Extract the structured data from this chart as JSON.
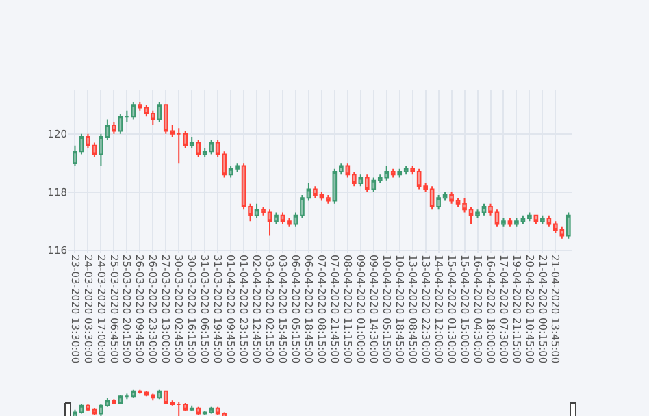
{
  "chart_data": {
    "type": "candlestick",
    "categories": [
      "23-03-2020 13:30:00",
      null,
      "24-03-2020 03:30:00",
      null,
      "24-03-2020 17:00:00",
      null,
      "25-03-2020 06:45:00",
      null,
      "25-03-2020 20:15:00",
      null,
      "26-03-2020 09:45:00",
      null,
      "26-03-2020 23:30:00",
      null,
      "27-03-2020 13:00:00",
      null,
      "30-03-2020 02:45:00",
      null,
      "30-03-2020 16:15:00",
      null,
      "31-03-2020 06:15:00",
      null,
      "31-03-2020 19:45:00",
      null,
      "01-04-2020 09:45:00",
      null,
      "01-04-2020 23:15:00",
      null,
      "02-04-2020 12:45:00",
      null,
      "03-04-2020 02:15:00",
      null,
      "03-04-2020 15:45:00",
      null,
      "06-04-2020 05:15:00",
      null,
      "06-04-2020 18:45:00",
      null,
      "07-04-2020 08:15:00",
      null,
      "07-04-2020 21:45:00",
      null,
      "08-04-2020 11:15:00",
      null,
      "09-04-2020 01:00:00",
      null,
      "09-04-2020 14:30:00",
      null,
      "10-04-2020 05:15:00",
      null,
      "10-04-2020 18:45:00",
      null,
      "13-04-2020 08:45:00",
      null,
      "13-04-2020 22:30:00",
      null,
      "14-04-2020 12:00:00",
      null,
      "15-04-2020 01:30:00",
      null,
      "15-04-2020 15:00:00",
      null,
      "16-04-2020 04:30:00",
      null,
      "16-04-2020 18:00:00",
      null,
      "17-04-2020 07:30:00",
      null,
      "19-04-2020 21:15:00",
      null,
      "20-04-2020 10:45:00",
      null,
      "21-04-2020 00:15:00",
      null,
      "21-04-2020 13:45:00",
      null,
      null
    ],
    "ohlc": [
      [
        119.0,
        119.6,
        118.9,
        119.4
      ],
      [
        119.4,
        120.0,
        119.3,
        119.9
      ],
      [
        119.9,
        120.0,
        119.5,
        119.6
      ],
      [
        119.6,
        119.7,
        119.2,
        119.3
      ],
      [
        119.3,
        120.0,
        118.9,
        119.9
      ],
      [
        119.9,
        120.5,
        119.8,
        120.3
      ],
      [
        120.3,
        120.4,
        120.0,
        120.1
      ],
      [
        120.1,
        120.7,
        120.0,
        120.6
      ],
      [
        120.6,
        120.8,
        120.4,
        120.6
      ],
      [
        120.6,
        121.1,
        120.5,
        121.0
      ],
      [
        121.0,
        121.1,
        120.8,
        120.9
      ],
      [
        120.9,
        121.0,
        120.6,
        120.7
      ],
      [
        120.7,
        120.8,
        120.3,
        120.5
      ],
      [
        120.5,
        121.1,
        120.4,
        121.0
      ],
      [
        121.0,
        121.0,
        120.0,
        120.1
      ],
      [
        120.1,
        120.3,
        119.9,
        120.0
      ],
      [
        120.0,
        120.2,
        119.0,
        120.0
      ],
      [
        120.0,
        120.1,
        119.5,
        119.6
      ],
      [
        119.6,
        119.9,
        119.5,
        119.7
      ],
      [
        119.7,
        119.8,
        119.2,
        119.3
      ],
      [
        119.3,
        119.5,
        119.2,
        119.4
      ],
      [
        119.4,
        119.8,
        119.3,
        119.7
      ],
      [
        119.7,
        119.8,
        119.2,
        119.3
      ],
      [
        119.3,
        119.4,
        118.5,
        118.6
      ],
      [
        118.6,
        118.9,
        118.5,
        118.8
      ],
      [
        118.8,
        119.0,
        118.7,
        118.9
      ],
      [
        118.9,
        119.0,
        117.4,
        117.5
      ],
      [
        117.5,
        117.6,
        117.0,
        117.2
      ],
      [
        117.2,
        117.6,
        117.1,
        117.4
      ],
      [
        117.4,
        117.5,
        117.2,
        117.3
      ],
      [
        117.3,
        117.4,
        116.5,
        117.0
      ],
      [
        117.0,
        117.3,
        116.9,
        117.2
      ],
      [
        117.2,
        117.3,
        116.9,
        117.0
      ],
      [
        117.0,
        117.1,
        116.8,
        116.9
      ],
      [
        116.9,
        117.3,
        116.8,
        117.2
      ],
      [
        117.2,
        117.9,
        117.1,
        117.8
      ],
      [
        117.8,
        118.3,
        117.7,
        118.1
      ],
      [
        118.1,
        118.2,
        117.8,
        117.9
      ],
      [
        117.9,
        118.0,
        117.7,
        117.8
      ],
      [
        117.8,
        117.9,
        117.6,
        117.7
      ],
      [
        117.7,
        118.8,
        117.6,
        118.7
      ],
      [
        118.7,
        119.0,
        118.6,
        118.9
      ],
      [
        118.9,
        119.0,
        118.5,
        118.6
      ],
      [
        118.6,
        118.7,
        118.2,
        118.3
      ],
      [
        118.3,
        118.6,
        118.2,
        118.5
      ],
      [
        118.5,
        118.6,
        118.0,
        118.1
      ],
      [
        118.1,
        118.5,
        118.0,
        118.4
      ],
      [
        118.4,
        118.6,
        118.3,
        118.5
      ],
      [
        118.5,
        118.9,
        118.4,
        118.7
      ],
      [
        118.7,
        118.8,
        118.5,
        118.6
      ],
      [
        118.6,
        118.8,
        118.5,
        118.7
      ],
      [
        118.7,
        118.9,
        118.6,
        118.8
      ],
      [
        118.8,
        118.9,
        118.6,
        118.7
      ],
      [
        118.7,
        118.8,
        118.1,
        118.2
      ],
      [
        118.2,
        118.3,
        118.0,
        118.1
      ],
      [
        118.1,
        118.2,
        117.4,
        117.5
      ],
      [
        117.5,
        117.9,
        117.4,
        117.8
      ],
      [
        117.8,
        118.0,
        117.7,
        117.9
      ],
      [
        117.9,
        118.0,
        117.6,
        117.7
      ],
      [
        117.7,
        117.8,
        117.5,
        117.6
      ],
      [
        117.6,
        117.8,
        117.3,
        117.4
      ],
      [
        117.4,
        117.5,
        116.9,
        117.2
      ],
      [
        117.2,
        117.4,
        117.1,
        117.3
      ],
      [
        117.3,
        117.6,
        117.2,
        117.5
      ],
      [
        117.5,
        117.6,
        117.2,
        117.3
      ],
      [
        117.3,
        117.4,
        116.8,
        116.9
      ],
      [
        116.9,
        117.1,
        116.8,
        117.0
      ],
      [
        117.0,
        117.1,
        116.8,
        116.9
      ],
      [
        116.9,
        117.1,
        116.8,
        117.0
      ],
      [
        117.0,
        117.2,
        116.9,
        117.1
      ],
      [
        117.1,
        117.3,
        117.0,
        117.2
      ],
      [
        117.2,
        117.2,
        116.9,
        117.0
      ],
      [
        117.0,
        117.2,
        116.9,
        117.1
      ],
      [
        117.1,
        117.2,
        116.8,
        116.9
      ],
      [
        116.9,
        117.0,
        116.6,
        116.7
      ],
      [
        116.7,
        116.8,
        116.4,
        116.5
      ],
      [
        116.5,
        117.3,
        116.4,
        117.2
      ]
    ],
    "ylim": [
      115.9,
      121.5
    ],
    "yticks": [
      116,
      118,
      120
    ],
    "grid": true,
    "legend": false
  }
}
